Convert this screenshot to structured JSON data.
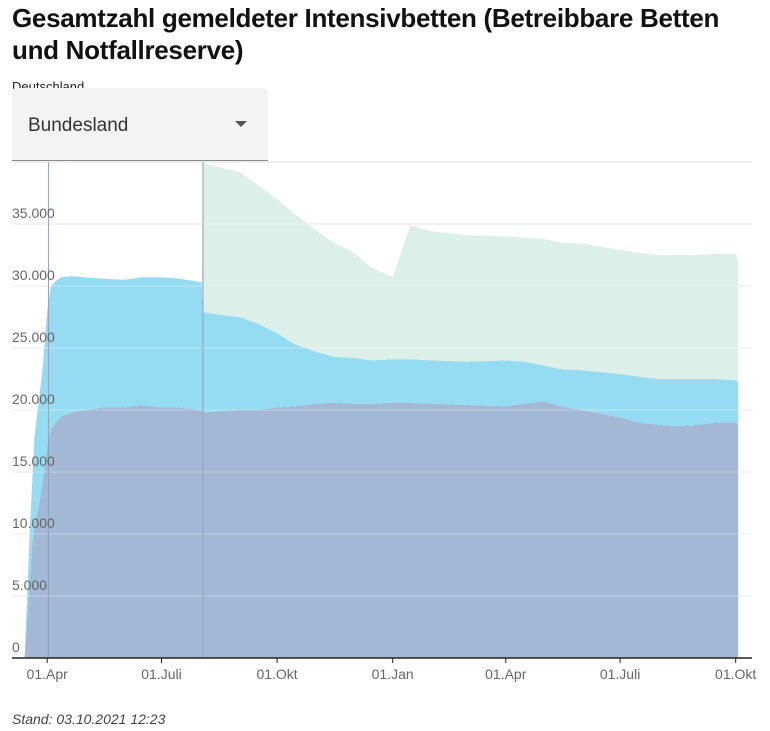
{
  "title": "Gesamtzahl gemeldeter Intensivbetten (Betreibbare Betten und Notfallreserve)",
  "subtitle": "Deutschland",
  "dropdown": {
    "label": "Bundesland",
    "icon": "caret-down-icon"
  },
  "footer": "Stand: 03.10.2021 12:23",
  "colors": {
    "occupied": "#a2b8d4",
    "free": "#95dcf3",
    "reserve": "#dcefe8",
    "grid": "#dddddd",
    "axis": "#222222"
  },
  "chart_data": {
    "type": "area",
    "stacked": true,
    "ylim": [
      0,
      40000
    ],
    "y_ticks": [
      0,
      5000,
      10000,
      15000,
      20000,
      25000,
      30000,
      35000
    ],
    "y_tick_labels": [
      "0",
      "5.000",
      "10.000",
      "15.000",
      "20.000",
      "25.000",
      "30.000",
      "35.000"
    ],
    "x_ticks": [
      "2020-04-01",
      "2020-07-01",
      "2020-10-01",
      "2021-01-01",
      "2021-04-01",
      "2021-07-01",
      "2021-10-01"
    ],
    "x_tick_labels": [
      "01.Apr",
      "01.Juli",
      "01.Okt",
      "01.Jan",
      "01.Apr",
      "01.Juli",
      "01.Okt"
    ],
    "xlim": [
      "2020-03-04",
      "2021-10-14"
    ],
    "grid": true,
    "legend": "none",
    "markers": [
      "2020-04-02",
      "2020-08-03"
    ],
    "x": [
      "2020-03-14",
      "2020-03-16",
      "2020-03-18",
      "2020-03-20",
      "2020-03-22",
      "2020-03-25",
      "2020-03-28",
      "2020-04-01",
      "2020-04-04",
      "2020-04-08",
      "2020-04-12",
      "2020-04-20",
      "2020-05-01",
      "2020-05-15",
      "2020-06-01",
      "2020-06-15",
      "2020-07-01",
      "2020-07-15",
      "2020-08-02",
      "2020-08-03",
      "2020-08-15",
      "2020-09-01",
      "2020-09-15",
      "2020-10-01",
      "2020-10-15",
      "2020-11-01",
      "2020-11-15",
      "2020-12-01",
      "2020-12-15",
      "2021-01-01",
      "2021-01-15",
      "2021-02-01",
      "2021-03-01",
      "2021-04-01",
      "2021-04-15",
      "2021-05-01",
      "2021-05-15",
      "2021-06-01",
      "2021-07-01",
      "2021-07-15",
      "2021-08-01",
      "2021-08-15",
      "2021-09-01",
      "2021-09-15",
      "2021-10-01",
      "2021-10-03"
    ],
    "series": [
      {
        "color": "occupied",
        "values": [
          0,
          3000,
          6000,
          9000,
          11000,
          12000,
          14000,
          17000,
          18500,
          19000,
          19500,
          19800,
          20000,
          20200,
          20200,
          20400,
          20200,
          20200,
          20000,
          19800,
          19900,
          20000,
          20000,
          20200,
          20300,
          20500,
          20600,
          20500,
          20500,
          20600,
          20600,
          20500,
          20400,
          20300,
          20500,
          20700,
          20300,
          20000,
          19400,
          19000,
          18800,
          18700,
          18800,
          19000,
          19000,
          18800
        ]
      },
      {
        "color": "free",
        "values": [
          0,
          2000,
          4000,
          5000,
          7000,
          8500,
          9000,
          11000,
          11500,
          11400,
          11200,
          11000,
          10700,
          10400,
          10300,
          10300,
          10500,
          10400,
          10300,
          8100,
          7800,
          7500,
          7000,
          6000,
          5000,
          4200,
          3700,
          3700,
          3500,
          3500,
          3500,
          3500,
          3500,
          3700,
          3400,
          2900,
          3000,
          3200,
          3500,
          3700,
          3700,
          3800,
          3700,
          3500,
          3400,
          3400
        ]
      },
      {
        "color": "reserve",
        "values": [
          0,
          0,
          0,
          0,
          0,
          0,
          0,
          0,
          0,
          0,
          0,
          0,
          0,
          0,
          0,
          0,
          0,
          0,
          0,
          12000,
          11900,
          11700,
          11200,
          10800,
          10500,
          9800,
          9200,
          8500,
          7500,
          6600,
          10800,
          10400,
          10200,
          10000,
          10000,
          10200,
          10200,
          10200,
          10000,
          10000,
          10000,
          10000,
          10000,
          10100,
          10200,
          10000
        ]
      }
    ]
  }
}
